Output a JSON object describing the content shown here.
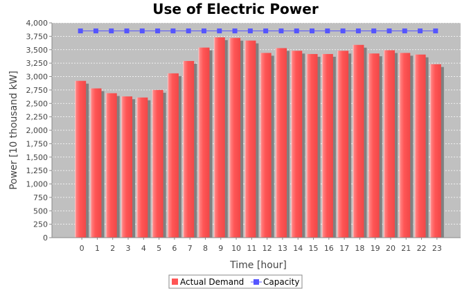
{
  "chart_data": {
    "type": "bar",
    "title": "Use of Electric Power",
    "xlabel": "Time [hour]",
    "ylabel": "Power [10 thousand kW]",
    "categories": [
      "0",
      "1",
      "2",
      "3",
      "4",
      "5",
      "6",
      "7",
      "8",
      "9",
      "10",
      "11",
      "12",
      "13",
      "14",
      "15",
      "16",
      "17",
      "18",
      "19",
      "20",
      "21",
      "22",
      "23"
    ],
    "yticks": [
      "0",
      "250",
      "500",
      "750",
      "1,000",
      "1,250",
      "1,500",
      "1,750",
      "2,000",
      "2,250",
      "2,500",
      "2,750",
      "3,000",
      "3,250",
      "3,500",
      "3,750",
      "4,000"
    ],
    "ylim": [
      0,
      4000
    ],
    "grid": true,
    "legend_position": "bottom",
    "series": [
      {
        "name": "Actual Demand",
        "kind": "bar",
        "color": "#ff5555",
        "values": [
          2920,
          2780,
          2690,
          2630,
          2610,
          2750,
          3060,
          3290,
          3540,
          3730,
          3720,
          3670,
          3440,
          3530,
          3480,
          3420,
          3420,
          3480,
          3590,
          3430,
          3490,
          3440,
          3410,
          3230
        ]
      },
      {
        "name": "Capacity",
        "kind": "line",
        "color": "#5555ff",
        "values": [
          3850,
          3850,
          3850,
          3850,
          3850,
          3850,
          3850,
          3850,
          3850,
          3850,
          3850,
          3850,
          3850,
          3850,
          3850,
          3850,
          3850,
          3850,
          3850,
          3850,
          3850,
          3850,
          3850,
          3850
        ]
      }
    ]
  }
}
